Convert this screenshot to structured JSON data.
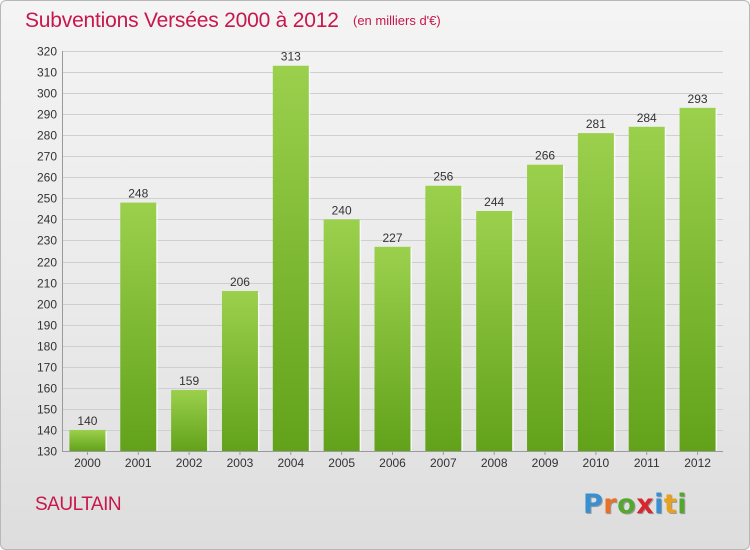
{
  "header": {
    "title": "Subventions Versées 2000 à 2012",
    "unit_note": "(en milliers d'€)"
  },
  "commune": "SAULTAIN",
  "logo": {
    "text": "Proxiti",
    "letters": [
      {
        "ch": "P",
        "color": "#3a8fd0"
      },
      {
        "ch": "r",
        "color": "#e8702a"
      },
      {
        "ch": "o",
        "color": "#56a632"
      },
      {
        "ch": "x",
        "color": "#d8262e"
      },
      {
        "ch": "i",
        "color": "#3a8fd0"
      },
      {
        "ch": "t",
        "color": "#e8a11f"
      },
      {
        "ch": "i",
        "color": "#56a632"
      }
    ]
  },
  "colors": {
    "accent": "#c8174c",
    "bar_light": "#9bd04d",
    "bar_dark": "#62a21a",
    "grid": "#cfcfcf",
    "text": "#333333"
  },
  "chart_data": {
    "type": "bar",
    "title": "Subventions Versées 2000 à 2012",
    "subtitle": "(en milliers d'€)",
    "categories": [
      "2000",
      "2001",
      "2002",
      "2003",
      "2004",
      "2005",
      "2006",
      "2007",
      "2008",
      "2009",
      "2010",
      "2011",
      "2012"
    ],
    "values": [
      140,
      248,
      159,
      206,
      313,
      240,
      227,
      256,
      244,
      266,
      281,
      284,
      293
    ],
    "ylim": [
      130,
      320
    ],
    "yticks": [
      130,
      140,
      150,
      160,
      170,
      180,
      190,
      200,
      210,
      220,
      230,
      240,
      250,
      260,
      270,
      280,
      290,
      300,
      310,
      320
    ],
    "grid": true,
    "data_labels": true,
    "legend": "none"
  }
}
